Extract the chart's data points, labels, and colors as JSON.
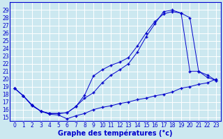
{
  "xlabel": "Graphe des températures (°c)",
  "background_color": "#cce8f0",
  "line_color": "#0000cc",
  "grid_color": "#b8d8e8",
  "xlim": [
    -0.5,
    23.5
  ],
  "ylim": [
    14.5,
    30.0
  ],
  "xticks": [
    0,
    1,
    2,
    3,
    4,
    5,
    6,
    7,
    8,
    9,
    10,
    11,
    12,
    13,
    14,
    15,
    16,
    17,
    18,
    19,
    20,
    21,
    22,
    23
  ],
  "yticks": [
    15,
    16,
    17,
    18,
    19,
    20,
    21,
    22,
    23,
    24,
    25,
    26,
    27,
    28,
    29
  ],
  "line1_x": [
    0,
    1,
    2,
    3,
    4,
    5,
    6,
    7,
    8,
    9,
    10,
    11,
    12,
    13,
    14,
    15,
    16,
    17,
    18,
    19,
    20,
    21,
    22,
    23
  ],
  "line1_y": [
    18.8,
    17.8,
    16.6,
    15.8,
    15.5,
    15.5,
    15.6,
    16.4,
    17.9,
    20.4,
    21.2,
    21.8,
    22.2,
    22.8,
    24.3,
    26.0,
    27.5,
    28.5,
    28.8,
    28.6,
    21.0,
    21.0,
    20.5,
    19.8
  ],
  "line2_x": [
    0,
    1,
    2,
    3,
    4,
    5,
    6,
    7,
    8,
    9,
    10,
    11,
    12,
    13,
    14,
    15,
    16,
    17,
    18,
    19,
    20,
    21,
    22,
    23
  ],
  "line2_y": [
    18.8,
    17.8,
    16.6,
    15.8,
    15.5,
    15.5,
    15.6,
    16.4,
    17.5,
    18.2,
    19.5,
    20.5,
    21.2,
    22.0,
    23.5,
    25.5,
    27.2,
    28.8,
    29.0,
    28.6,
    28.0,
    21.0,
    20.2,
    19.8
  ],
  "line3_x": [
    0,
    1,
    2,
    3,
    4,
    5,
    6,
    7,
    8,
    9,
    10,
    11,
    12,
    13,
    14,
    15,
    16,
    17,
    18,
    19,
    20,
    21,
    22,
    23
  ],
  "line3_y": [
    18.8,
    17.8,
    16.5,
    15.8,
    15.4,
    15.3,
    14.8,
    15.2,
    15.5,
    16.0,
    16.3,
    16.5,
    16.8,
    17.0,
    17.3,
    17.5,
    17.8,
    18.0,
    18.3,
    18.8,
    19.0,
    19.3,
    19.5,
    20.0
  ],
  "tick_fontsize": 5.5,
  "xlabel_fontsize": 7,
  "marker": "+"
}
